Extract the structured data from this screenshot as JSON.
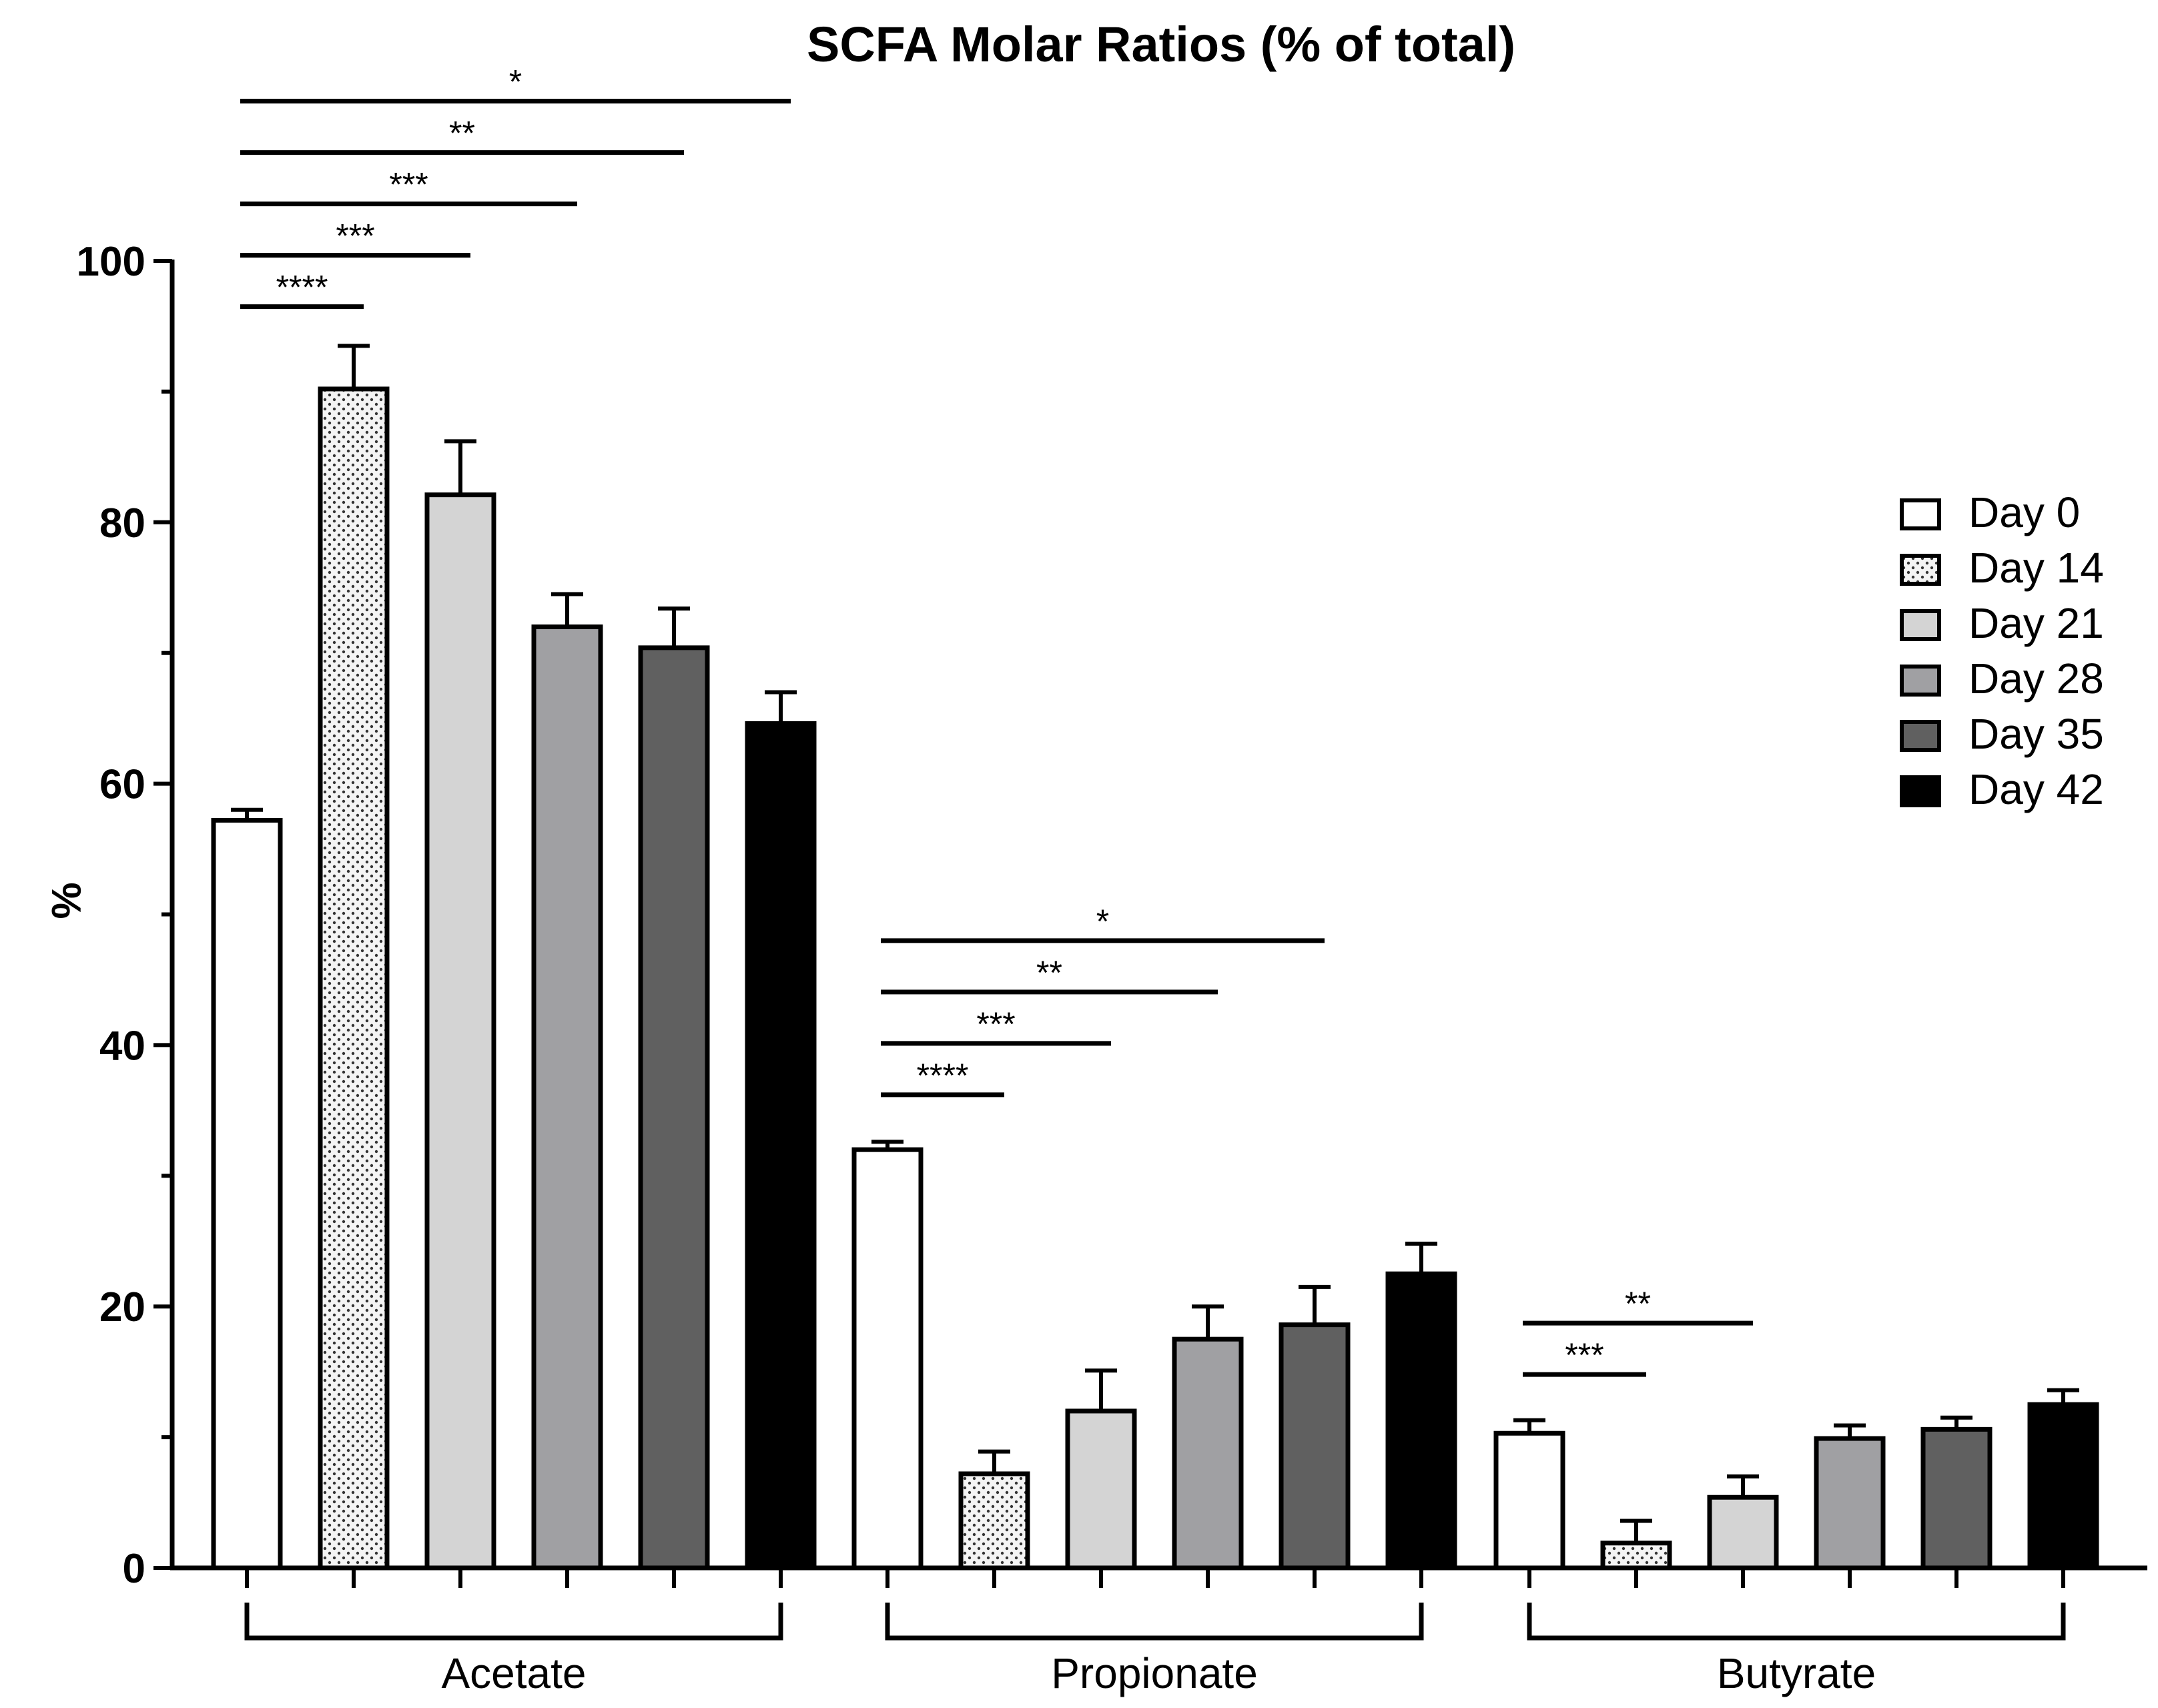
{
  "chart_data": {
    "type": "bar",
    "title": "SCFA Molar Ratios (% of total)",
    "xlabel": "",
    "ylabel": "%",
    "ylim": [
      0,
      100
    ],
    "yticks": [
      0,
      20,
      40,
      60,
      80,
      100
    ],
    "yticks_labels": [
      "0",
      "20",
      "40",
      "60",
      "80",
      "100"
    ],
    "grid": false,
    "legend_position": "right",
    "categories": [
      "Acetate",
      "Propionate",
      "Butyrate"
    ],
    "series": [
      {
        "name": "Day 0",
        "fill": "#ffffff",
        "pattern": "none",
        "values": [
          57.2,
          32.0,
          10.3
        ],
        "errors": [
          0.8,
          0.6,
          1.0
        ]
      },
      {
        "name": "Day 14",
        "fill": "#f2f2f2",
        "pattern": "dotted",
        "values": [
          90.2,
          7.2,
          1.9
        ],
        "errors": [
          3.3,
          1.7,
          1.7
        ]
      },
      {
        "name": "Day 21",
        "fill": "#d4d4d4",
        "pattern": "none",
        "values": [
          82.1,
          12.0,
          5.4
        ],
        "errors": [
          4.1,
          3.1,
          1.6
        ]
      },
      {
        "name": "Day 28",
        "fill": "#a0a0a3",
        "pattern": "none",
        "values": [
          72.0,
          17.5,
          9.9
        ],
        "errors": [
          2.5,
          2.5,
          1.0
        ]
      },
      {
        "name": "Day 35",
        "fill": "#606060",
        "pattern": "none",
        "values": [
          70.4,
          18.6,
          10.6
        ],
        "errors": [
          3.0,
          2.9,
          0.9
        ]
      },
      {
        "name": "Day 42",
        "fill": "#000000",
        "pattern": "none",
        "values": [
          64.6,
          22.5,
          12.5
        ],
        "errors": [
          2.4,
          2.3,
          1.1
        ]
      }
    ],
    "annotations": [
      {
        "group": 0,
        "from": 0,
        "to": 1,
        "label": "****",
        "level": 0
      },
      {
        "group": 0,
        "from": 0,
        "to": 2,
        "label": "***",
        "level": 1
      },
      {
        "group": 0,
        "from": 0,
        "to": 3,
        "label": "***",
        "level": 2
      },
      {
        "group": 0,
        "from": 0,
        "to": 4,
        "label": "**",
        "level": 3
      },
      {
        "group": 0,
        "from": 0,
        "to": 5,
        "label": "*",
        "level": 4
      },
      {
        "group": 1,
        "from": 0,
        "to": 1,
        "label": "****",
        "level": 0
      },
      {
        "group": 1,
        "from": 0,
        "to": 2,
        "label": "***",
        "level": 1
      },
      {
        "group": 1,
        "from": 0,
        "to": 3,
        "label": "**",
        "level": 2
      },
      {
        "group": 1,
        "from": 0,
        "to": 4,
        "label": "*",
        "level": 3
      },
      {
        "group": 2,
        "from": 0,
        "to": 1,
        "label": "***",
        "level": 0
      },
      {
        "group": 2,
        "from": 0,
        "to": 2,
        "label": "**",
        "level": 1
      }
    ]
  }
}
